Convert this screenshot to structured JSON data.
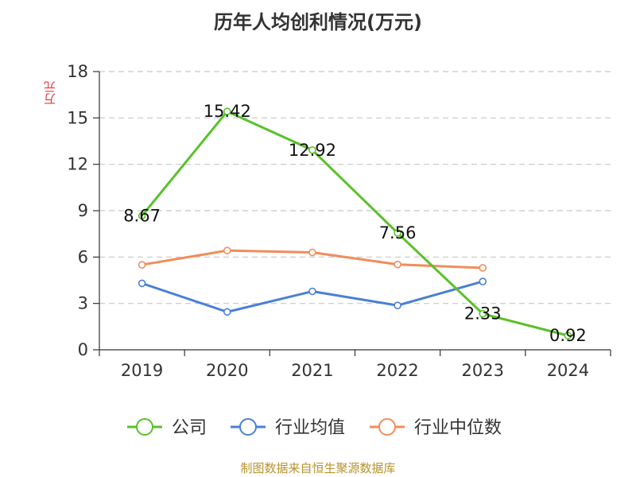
{
  "chart_data": {
    "type": "line",
    "title": "历年人均创利情况(万元)",
    "ylabel": "万元",
    "categories": [
      "2019",
      "2020",
      "2021",
      "2022",
      "2023",
      "2024"
    ],
    "ylim": [
      0,
      18
    ],
    "yticks": [
      0,
      3,
      6,
      9,
      12,
      15,
      18
    ],
    "grid": true,
    "legend_position": "bottom",
    "series": [
      {
        "name": "公司",
        "color": "#5ac12a",
        "values": [
          8.67,
          15.42,
          12.92,
          7.56,
          2.33,
          0.92
        ],
        "labels": [
          "8.67",
          "15.42",
          "12.92",
          "7.56",
          "2.33",
          "0.92"
        ]
      },
      {
        "name": "行业均值",
        "color": "#4a7fd6",
        "values": [
          4.3,
          2.45,
          3.78,
          2.87,
          4.42,
          null
        ]
      },
      {
        "name": "行业中位数",
        "color": "#f28c5a",
        "values": [
          5.5,
          6.42,
          6.3,
          5.52,
          5.3,
          null
        ]
      }
    ]
  },
  "footer": {
    "source": "制图数据来自恒生聚源数据库"
  }
}
